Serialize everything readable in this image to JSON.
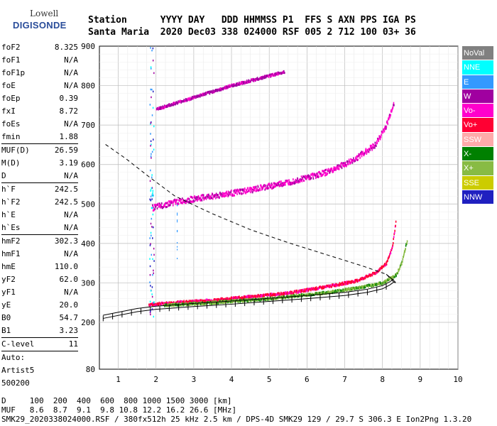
{
  "logo": {
    "line1": "Lowell",
    "line2": "DIGISONDE"
  },
  "header": {
    "line1": "Station      YYYY DAY   DDD HHMMSS P1  FFS S AXN PPS IGA PS",
    "line2": "Santa Maria  2020 Dec03 338 024000 RSF 005 2 712 100 03+ 36"
  },
  "params": {
    "group1": [
      {
        "k": "foF2",
        "v": "8.325"
      },
      {
        "k": "foF1",
        "v": "N/A"
      },
      {
        "k": "foF1p",
        "v": "N/A"
      },
      {
        "k": "foE",
        "v": "N/A"
      },
      {
        "k": "foEp",
        "v": "0.39"
      },
      {
        "k": "fxI",
        "v": "8.72"
      },
      {
        "k": "foEs",
        "v": "N/A"
      },
      {
        "k": "fmin",
        "v": "1.88"
      }
    ],
    "group2": [
      {
        "k": "MUF(D)",
        "v": "26.59"
      },
      {
        "k": "M(D)",
        "v": "3.19"
      },
      {
        "k": "D",
        "v": "N/A"
      }
    ],
    "group3": [
      {
        "k": "h`F",
        "v": "242.5"
      },
      {
        "k": "h`F2",
        "v": "242.5"
      },
      {
        "k": "h`E",
        "v": "N/A"
      },
      {
        "k": "h`Es",
        "v": "N/A"
      }
    ],
    "group4": [
      {
        "k": "hmF2",
        "v": "302.3"
      },
      {
        "k": "hmF1",
        "v": "N/A"
      },
      {
        "k": "hmE",
        "v": "110.0"
      },
      {
        "k": "yF2",
        "v": "62.0"
      },
      {
        "k": "yF1",
        "v": "N/A"
      },
      {
        "k": "yE",
        "v": "20.0"
      },
      {
        "k": "B0",
        "v": "54.7"
      },
      {
        "k": "B1",
        "v": "3.23"
      }
    ],
    "group5": [
      {
        "k": "C-level",
        "v": "11"
      }
    ],
    "auto": [
      "Auto:",
      "Artist5",
      "500200"
    ]
  },
  "legend": [
    {
      "label": "NoVal",
      "color": "#808080"
    },
    {
      "label": "NNE",
      "color": "#00ffff"
    },
    {
      "label": "E",
      "color": "#3399ff"
    },
    {
      "label": "W",
      "color": "#a000a0"
    },
    {
      "label": "Vo-",
      "color": "#ff00cc"
    },
    {
      "label": "Vo+",
      "color": "#ff0033"
    },
    {
      "label": "SSW",
      "color": "#ffaaaa"
    },
    {
      "label": "X-",
      "color": "#008000"
    },
    {
      "label": "X+",
      "color": "#88bb44"
    },
    {
      "label": "SSE",
      "color": "#cccc00"
    },
    {
      "label": "NNW",
      "color": "#2020c0"
    }
  ],
  "footer": {
    "line1": "D     100  200  400  600  800 1000 1500 3000 [km]",
    "line2": "MUF   8.6  8.7  9.1  9.8 10.8 12.2 16.2 26.6 [MHz]",
    "line3": "SMK29_2020338024000.RSF / 380fx512h 25 kHz 2.5 km / DPS-4D SMK29 129 / 29.7 S 306.3 E Ion2Png 1.3.20"
  },
  "chart_data": {
    "type": "scatter",
    "xlim": [
      0.5,
      10
    ],
    "ylim": [
      80,
      900
    ],
    "x_ticks": [
      "1",
      "2",
      "3",
      "4",
      "5",
      "6",
      "7",
      "8",
      "9",
      "10"
    ],
    "y_ticks": [
      "80",
      "200",
      "300",
      "400",
      "500",
      "600",
      "700",
      "800",
      "900"
    ],
    "grid": true,
    "series": [
      {
        "name": "Vo+",
        "values": [
          [
            1.8,
            245
          ],
          [
            2.5,
            250
          ],
          [
            3.5,
            256
          ],
          [
            4.5,
            265
          ],
          [
            5.5,
            274
          ],
          [
            6.5,
            290
          ],
          [
            7.3,
            305
          ],
          [
            7.8,
            325
          ],
          [
            8.1,
            350
          ],
          [
            8.25,
            390
          ],
          [
            8.35,
            460
          ]
        ]
      },
      {
        "name": "X+",
        "values": [
          [
            2.2,
            243
          ],
          [
            3.5,
            250
          ],
          [
            5,
            260
          ],
          [
            6.5,
            275
          ],
          [
            7.5,
            290
          ],
          [
            8,
            300
          ],
          [
            8.35,
            320
          ],
          [
            8.5,
            350
          ],
          [
            8.65,
            410
          ]
        ]
      },
      {
        "name": "Vo-",
        "values": [
          [
            1.9,
            490
          ],
          [
            2.5,
            505
          ],
          [
            3.5,
            520
          ],
          [
            4.5,
            535
          ],
          [
            5.5,
            555
          ],
          [
            6.5,
            580
          ],
          [
            7.2,
            610
          ],
          [
            7.8,
            650
          ],
          [
            8.1,
            700
          ],
          [
            8.3,
            760
          ]
        ]
      },
      {
        "name": "W",
        "values": [
          [
            2,
            740
          ],
          [
            3,
            770
          ],
          [
            4,
            800
          ],
          [
            5,
            825
          ],
          [
            5.4,
            835
          ]
        ]
      }
    ],
    "virtual_height_trace": [
      [
        0.6,
        210
      ],
      [
        1.5,
        227
      ],
      [
        2,
        233
      ],
      [
        3,
        240
      ],
      [
        4,
        246
      ],
      [
        5,
        253
      ],
      [
        6,
        260
      ],
      [
        7,
        268
      ],
      [
        7.6,
        276
      ],
      [
        8,
        285
      ],
      [
        8.2,
        295
      ],
      [
        8.3,
        302
      ]
    ],
    "profile": [
      [
        8.3,
        302
      ],
      [
        8.1,
        322
      ],
      [
        7.5,
        342
      ],
      [
        6.5,
        372
      ],
      [
        5.5,
        402
      ],
      [
        4.5,
        435
      ],
      [
        3.5,
        475
      ],
      [
        2.5,
        520
      ],
      [
        1.8,
        570
      ],
      [
        1.2,
        615
      ],
      [
        0.6,
        655
      ]
    ]
  }
}
